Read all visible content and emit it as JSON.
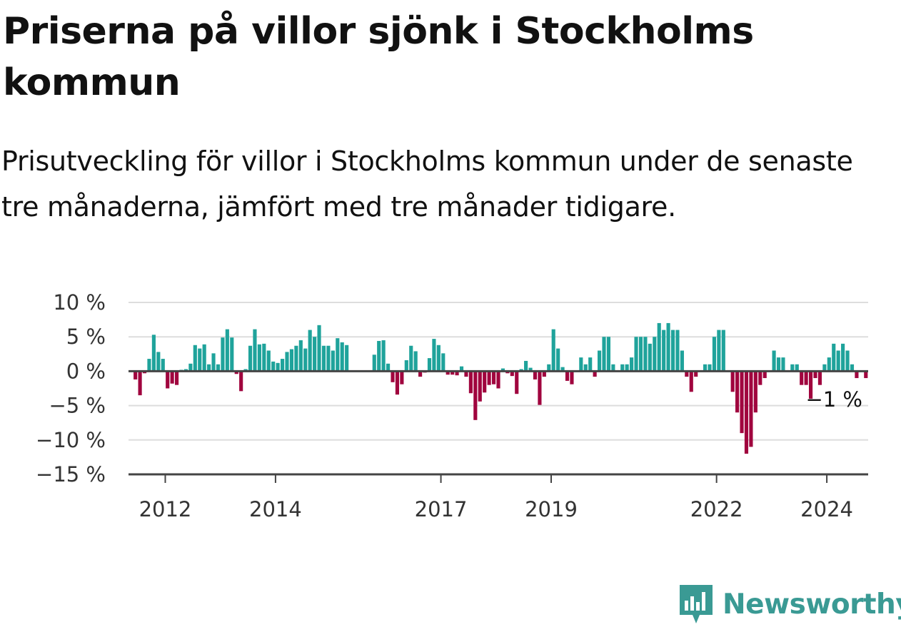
{
  "header": {
    "title": "Priserna på villor sjönk i Stockholms kommun",
    "subtitle": "Prisutveckling för villor i Stockholms kommun under de senaste tre månaderna, jämfört med tre månader tidigare."
  },
  "brand": {
    "name": "Newsworthy",
    "icon": "newsworthy-logo-icon",
    "color": "#3a9a94"
  },
  "chart_data": {
    "type": "bar",
    "title": "",
    "xlabel": "",
    "ylabel": "",
    "ylim": [
      -15,
      10
    ],
    "yticks": [
      {
        "value": 10,
        "label": "10 %"
      },
      {
        "value": 5,
        "label": "5 %"
      },
      {
        "value": 0,
        "label": "0 %"
      },
      {
        "value": -5,
        "label": "−5 %"
      },
      {
        "value": -10,
        "label": "−10 %"
      },
      {
        "value": -15,
        "label": "−15 %"
      }
    ],
    "xticks": [
      "2012",
      "2014",
      "2017",
      "2019",
      "2022",
      "2024"
    ],
    "grid": true,
    "colors": {
      "positive": "#1fa39b",
      "negative": "#a0043e",
      "grid": "#dddddd",
      "axis": "#444444"
    },
    "annotation": "−1 %",
    "series": [
      {
        "values": [
          null,
          -1.2,
          -3.5,
          -0.3,
          1.8,
          5.3,
          2.8,
          1.8,
          -2.5,
          -1.8,
          -2.0,
          0.2,
          0.3,
          1.1,
          3.8,
          3.3,
          3.9,
          1.0,
          2.6,
          1.0,
          4.9,
          6.1,
          4.9,
          -0.4,
          -2.9,
          0.3,
          3.7,
          6.1,
          3.9,
          4.0,
          3.0,
          1.4,
          1.2,
          1.8,
          2.8,
          3.2,
          3.7,
          4.5,
          3.3,
          6.0,
          5.0,
          6.7,
          3.7,
          3.7,
          3.0,
          4.8,
          4.2,
          3.8,
          null,
          null,
          null,
          null,
          null,
          2.4,
          4.4,
          4.5,
          1.1,
          -1.6,
          -3.4,
          -1.9,
          1.6,
          3.7,
          2.9,
          -0.8,
          -0.2,
          1.9,
          4.7,
          3.8,
          2.6,
          -0.5,
          -0.5,
          -0.6,
          0.7,
          -0.8,
          -3.2,
          -7.1,
          -4.4,
          -3.1,
          -2.0,
          -1.9,
          -2.5,
          0.4,
          -0.3,
          -0.7,
          -3.3,
          0.3,
          1.5,
          0.5,
          -1.2,
          -4.9,
          -0.8,
          1.0,
          6.1,
          3.3,
          0.6,
          -1.4,
          -1.9,
          0.1,
          2.0,
          1.0,
          2.0,
          -0.8,
          3.0,
          5.0,
          5.0,
          1.0,
          0.1,
          1.0,
          1.0,
          2.0,
          5.0,
          5.0,
          5.0,
          4.0,
          5.0,
          7.0,
          6.0,
          7.0,
          6.0,
          6.0,
          3.0,
          -0.8,
          -3.0,
          -0.8,
          0.1,
          1.0,
          1.0,
          5.0,
          6.0,
          6.0,
          0.1,
          -3.0,
          -6.0,
          -9.0,
          -12.0,
          -11.0,
          -6.0,
          -2.0,
          -1.0,
          0.1,
          3.0,
          2.0,
          2.0,
          0.1,
          1.0,
          1.0,
          -2.0,
          -2.0,
          -4.0,
          -1.0,
          -2.0,
          1.0,
          2.0,
          4.0,
          3.0,
          4.0,
          3.0,
          1.0,
          -1.0,
          0.1,
          -1.0
        ]
      }
    ]
  }
}
